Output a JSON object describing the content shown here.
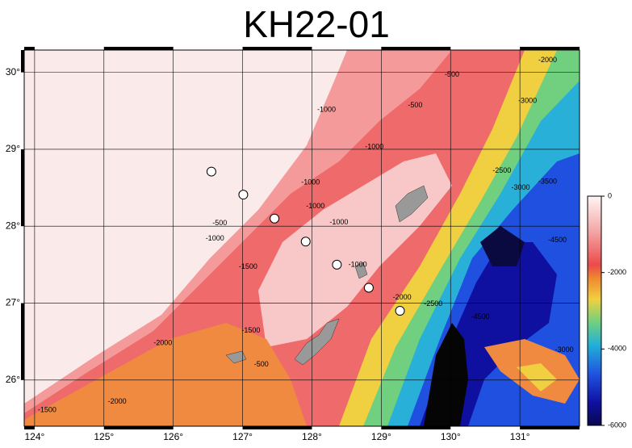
{
  "chart_data": {
    "type": "map",
    "title": "KH22-01",
    "xlim": [
      123.85,
      131.86
    ],
    "ylim": [
      25.4,
      30.29
    ],
    "xticks": [
      {
        "value": 124,
        "label": "124°"
      },
      {
        "value": 125,
        "label": "125°"
      },
      {
        "value": 126,
        "label": "126°"
      },
      {
        "value": 127,
        "label": "127°"
      },
      {
        "value": 128,
        "label": "128°"
      },
      {
        "value": 129,
        "label": "129°"
      },
      {
        "value": 130,
        "label": "130°"
      },
      {
        "value": 131,
        "label": "131°"
      }
    ],
    "yticks": [
      {
        "value": 26,
        "label": "26°"
      },
      {
        "value": 27,
        "label": "27°"
      },
      {
        "value": 28,
        "label": "28°"
      },
      {
        "value": 29,
        "label": "29°"
      },
      {
        "value": 30,
        "label": "30°"
      }
    ],
    "grid": true,
    "stations": {
      "color": "#ffffff",
      "x": [
        126.55,
        127.01,
        127.46,
        127.91,
        128.36,
        128.82,
        129.27
      ],
      "y": [
        28.71,
        28.41,
        28.1,
        27.8,
        27.5,
        27.2,
        26.9
      ]
    },
    "colorbar": {
      "lim": [
        -6000,
        0
      ],
      "ticks": [
        -6000,
        -4000,
        -2000,
        0
      ]
    },
    "contour_labels": [
      {
        "text": "-500",
        "x": 130.02,
        "y": 29.97
      },
      {
        "text": "-500",
        "x": 129.49,
        "y": 29.57
      },
      {
        "text": "-1000",
        "x": 128.21,
        "y": 29.51
      },
      {
        "text": "-1000",
        "x": 128.9,
        "y": 29.03
      },
      {
        "text": "-2000",
        "x": 131.4,
        "y": 30.16
      },
      {
        "text": "-3000",
        "x": 131.11,
        "y": 29.63
      },
      {
        "text": "-2500",
        "x": 130.74,
        "y": 28.72
      },
      {
        "text": "-3000",
        "x": 131.01,
        "y": 28.5
      },
      {
        "text": "-3500",
        "x": 131.4,
        "y": 28.58
      },
      {
        "text": "-1000",
        "x": 127.98,
        "y": 28.57
      },
      {
        "text": "-1000",
        "x": 128.05,
        "y": 28.26
      },
      {
        "text": "-1000",
        "x": 128.39,
        "y": 28.05
      },
      {
        "text": "-1000",
        "x": 128.66,
        "y": 27.5
      },
      {
        "text": "-500",
        "x": 126.67,
        "y": 28.04
      },
      {
        "text": "-1000",
        "x": 126.6,
        "y": 27.84
      },
      {
        "text": "-1500",
        "x": 127.08,
        "y": 27.47
      },
      {
        "text": "-2000",
        "x": 129.3,
        "y": 27.07
      },
      {
        "text": "-2500",
        "x": 129.75,
        "y": 26.99
      },
      {
        "text": "-4500",
        "x": 131.54,
        "y": 27.82
      },
      {
        "text": "-4500",
        "x": 130.43,
        "y": 26.82
      },
      {
        "text": "-3000",
        "x": 131.64,
        "y": 26.39
      },
      {
        "text": "-2000",
        "x": 125.19,
        "y": 25.72
      },
      {
        "text": "-1500",
        "x": 124.18,
        "y": 25.61
      },
      {
        "text": "-500",
        "x": 127.27,
        "y": 26.2
      },
      {
        "text": "-1500",
        "x": 127.12,
        "y": 26.64
      },
      {
        "text": "-2000",
        "x": 125.85,
        "y": 26.48
      }
    ]
  }
}
